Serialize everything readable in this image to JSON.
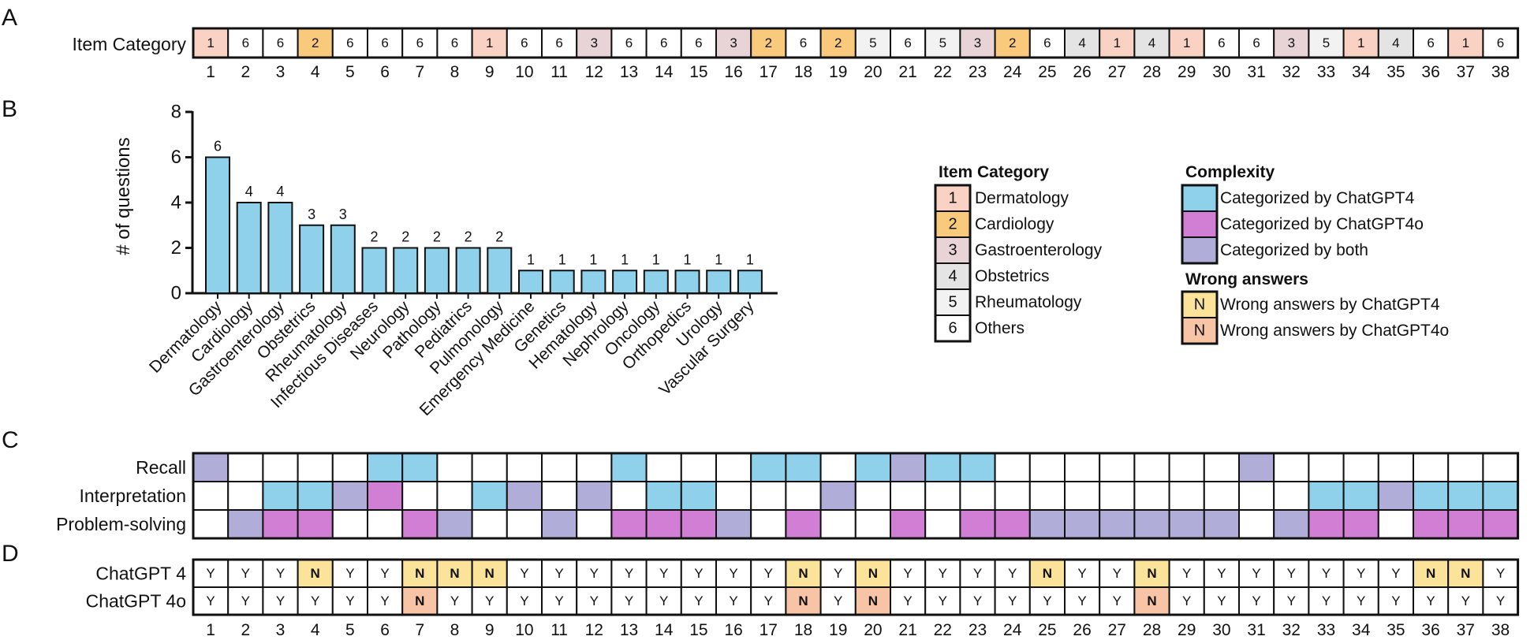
{
  "panels": {
    "a": "A",
    "b": "B",
    "c": "C",
    "d": "D"
  },
  "colors": {
    "cat1": "#f9d2c3",
    "cat2": "#f9c97c",
    "cat3": "#e8d4d6",
    "cat4": "#e4e4e4",
    "cat5": "#f2f2f2",
    "cat6": "#ffffff",
    "gpt4": "#8fd0ea",
    "gpt4o": "#d17fd4",
    "both": "#b0aed9",
    "wrong4": "#fbe39a",
    "wrong4o": "#f7c4a6",
    "bar": "#8fd0ea"
  },
  "question_numbers": [
    "1",
    "2",
    "3",
    "4",
    "5",
    "6",
    "7",
    "8",
    "9",
    "10",
    "11",
    "12",
    "13",
    "14",
    "15",
    "16",
    "17",
    "18",
    "19",
    "20",
    "21",
    "22",
    "23",
    "24",
    "25",
    "26",
    "27",
    "28",
    "29",
    "30",
    "31",
    "32",
    "33",
    "34",
    "35",
    "36",
    "37",
    "38"
  ],
  "panel_a": {
    "row_label": "Item Category",
    "categories": [
      "1",
      "6",
      "6",
      "2",
      "6",
      "6",
      "6",
      "6",
      "1",
      "6",
      "6",
      "3",
      "6",
      "6",
      "6",
      "3",
      "2",
      "6",
      "2",
      "5",
      "6",
      "5",
      "3",
      "2",
      "6",
      "4",
      "1",
      "4",
      "1",
      "6",
      "6",
      "3",
      "5",
      "1",
      "4",
      "6",
      "1",
      "6"
    ]
  },
  "chart_data": {
    "type": "bar",
    "categories": [
      "Dermatology",
      "Cardiology",
      "Gastroenterology",
      "Obstetrics",
      "Rheumatology",
      "Infectious Diseases",
      "Neurology",
      "Pathology",
      "Pediatrics",
      "Pulmonology",
      "Emergency Medicine",
      "Genetics",
      "Hematology",
      "Nephrology",
      "Oncology",
      "Orthopedics",
      "Urology",
      "Vascular Surgery"
    ],
    "values": [
      6,
      4,
      4,
      3,
      3,
      2,
      2,
      2,
      2,
      2,
      1,
      1,
      1,
      1,
      1,
      1,
      1,
      1
    ],
    "data_labels": [
      "6",
      "4",
      "4",
      "3",
      "3",
      "2",
      "2",
      "2",
      "2",
      "2",
      "1",
      "1",
      "1",
      "1",
      "1",
      "1",
      "1",
      "1"
    ],
    "ylabel": "# of questions",
    "yticks": [
      "0",
      "2",
      "4",
      "6",
      "8"
    ],
    "ylim": [
      0,
      8
    ],
    "grid": false
  },
  "legend": {
    "item_category": {
      "title": "Item Category",
      "items": [
        {
          "num": "1",
          "label": "Dermatology"
        },
        {
          "num": "2",
          "label": "Cardiology"
        },
        {
          "num": "3",
          "label": "Gastroenterology"
        },
        {
          "num": "4",
          "label": "Obstetrics"
        },
        {
          "num": "5",
          "label": "Rheumatology"
        },
        {
          "num": "6",
          "label": "Others"
        }
      ]
    },
    "complexity": {
      "title": "Complexity",
      "items": [
        {
          "key": "gpt4",
          "label": "Categorized by ChatGPT4"
        },
        {
          "key": "gpt4o",
          "label": "Categorized by ChatGPT4o"
        },
        {
          "key": "both",
          "label": "Categorized by both"
        }
      ]
    },
    "wrong": {
      "title": "Wrong answers",
      "items": [
        {
          "key": "wrong4",
          "mark": "N",
          "label": "Wrong answers by ChatGPT4"
        },
        {
          "key": "wrong4o",
          "mark": "N",
          "label": "Wrong answers by ChatGPT4o"
        }
      ]
    }
  },
  "panel_c": {
    "rows": [
      {
        "label": "Recall",
        "cells": [
          "both",
          "",
          "",
          "",
          "",
          "gpt4",
          "gpt4",
          "",
          "",
          "",
          "",
          "",
          "gpt4",
          "",
          "",
          "",
          "gpt4",
          "gpt4",
          "",
          "gpt4",
          "both",
          "gpt4",
          "gpt4",
          "",
          "",
          "",
          "",
          "",
          "",
          "",
          "both",
          "",
          "",
          "",
          "",
          "",
          "",
          ""
        ]
      },
      {
        "label": "Interpretation",
        "cells": [
          "",
          "",
          "gpt4",
          "gpt4",
          "both",
          "gpt4o",
          "",
          "",
          "gpt4",
          "both",
          "",
          "both",
          "",
          "gpt4",
          "gpt4",
          "",
          "",
          "",
          "both",
          "",
          "",
          "",
          "",
          "",
          "",
          "",
          "",
          "",
          "",
          "",
          "",
          "",
          "gpt4",
          "gpt4",
          "both",
          "gpt4",
          "gpt4",
          "gpt4"
        ]
      },
      {
        "label": "Problem-solving",
        "cells": [
          "",
          "both",
          "gpt4o",
          "gpt4o",
          "",
          "",
          "gpt4o",
          "both",
          "",
          "",
          "both",
          "",
          "gpt4o",
          "gpt4o",
          "gpt4o",
          "both",
          "",
          "gpt4o",
          "",
          "",
          "gpt4o",
          "",
          "gpt4o",
          "gpt4o",
          "both",
          "both",
          "both",
          "both",
          "both",
          "both",
          "",
          "both",
          "gpt4o",
          "gpt4o",
          "",
          "gpt4o",
          "gpt4o",
          "gpt4o"
        ]
      }
    ]
  },
  "panel_d": {
    "rows": [
      {
        "label": "ChatGPT 4",
        "answers": [
          "Y",
          "Y",
          "Y",
          "N",
          "Y",
          "Y",
          "N",
          "N",
          "N",
          "Y",
          "Y",
          "Y",
          "Y",
          "Y",
          "Y",
          "Y",
          "Y",
          "N",
          "Y",
          "N",
          "Y",
          "Y",
          "Y",
          "Y",
          "N",
          "Y",
          "Y",
          "N",
          "Y",
          "Y",
          "Y",
          "Y",
          "Y",
          "Y",
          "Y",
          "N",
          "N",
          "Y"
        ]
      },
      {
        "label": "ChatGPT 4o",
        "answers": [
          "Y",
          "Y",
          "Y",
          "Y",
          "Y",
          "Y",
          "N",
          "Y",
          "Y",
          "Y",
          "Y",
          "Y",
          "Y",
          "Y",
          "Y",
          "Y",
          "Y",
          "N",
          "Y",
          "N",
          "Y",
          "Y",
          "Y",
          "Y",
          "Y",
          "Y",
          "Y",
          "N",
          "Y",
          "Y",
          "Y",
          "Y",
          "Y",
          "Y",
          "Y",
          "Y",
          "Y",
          "Y"
        ]
      }
    ]
  }
}
